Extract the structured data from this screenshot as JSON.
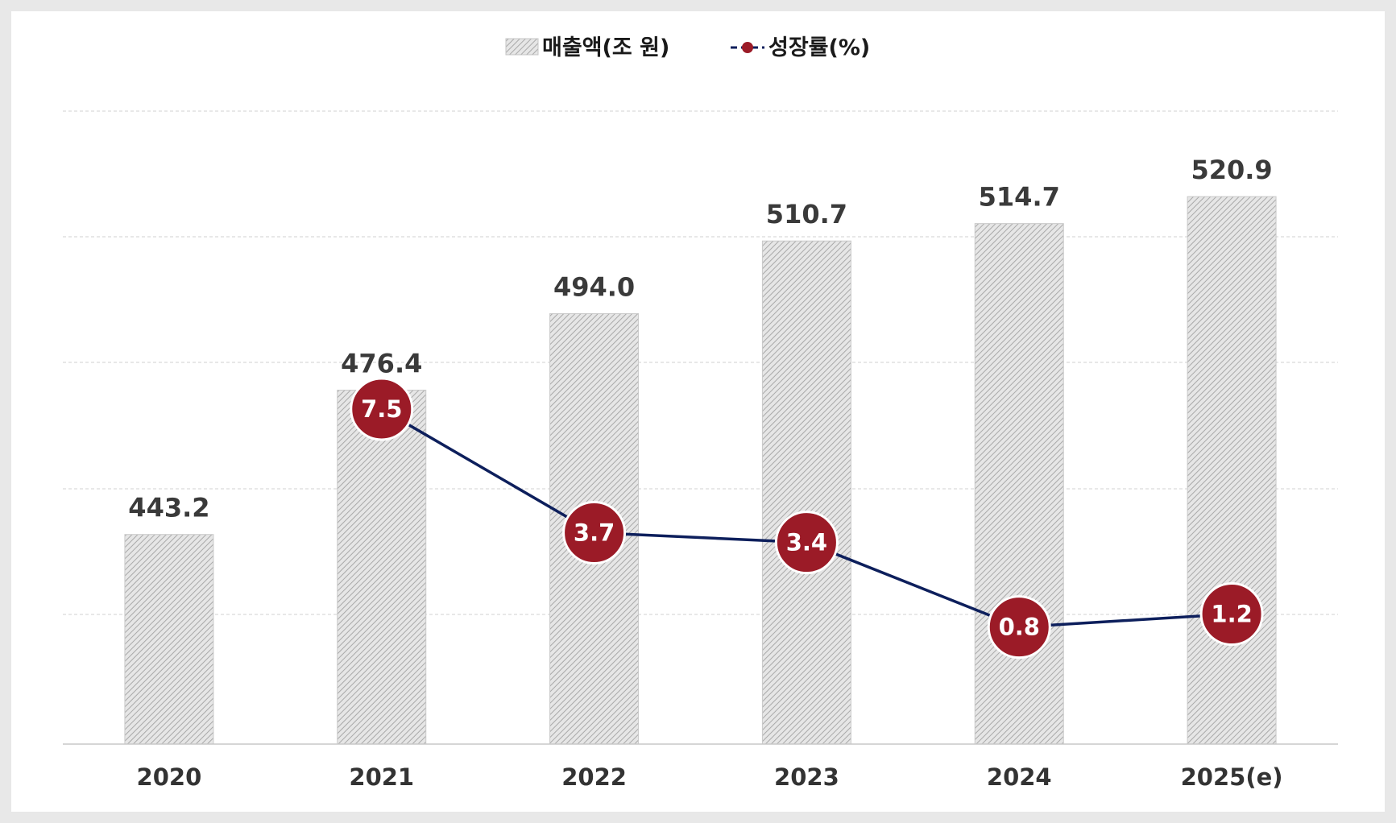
{
  "chart_data": {
    "type": "bar",
    "categories": [
      "2020",
      "2021",
      "2022",
      "2023",
      "2024",
      "2025(e)"
    ],
    "series": [
      {
        "name": "매출액(조 원)",
        "type": "bar",
        "values": [
          443.2,
          476.4,
          494.0,
          510.7,
          514.7,
          520.9
        ],
        "labels": [
          "443.2",
          "476.4",
          "494.0",
          "510.7",
          "514.7",
          "520.9"
        ],
        "color": "#cfcfcf",
        "pattern": "diagonal-hatch"
      },
      {
        "name": "성장률(%)",
        "type": "line",
        "values": [
          null,
          7.5,
          3.7,
          3.4,
          0.8,
          1.2
        ],
        "labels": [
          "",
          "7.5",
          "3.7",
          "3.4",
          "0.8",
          "1.2"
        ],
        "line_color": "#0d1f5c",
        "marker_color": "#9b1b27"
      }
    ],
    "legend": {
      "position": "top-center",
      "entries": [
        "매출액(조 원)",
        "성장률(%)"
      ]
    },
    "grid": true,
    "y_axis_visible": false
  }
}
